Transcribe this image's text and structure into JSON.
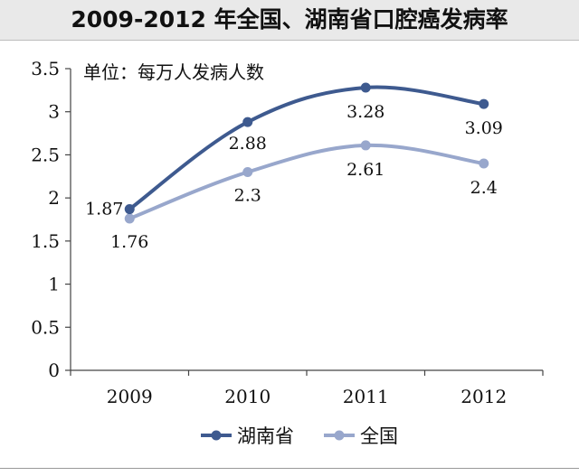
{
  "title": "2009-2012 年全国、湖南省口腔癌发病率",
  "unit_label": "单位：每万人发病人数",
  "chart_data": {
    "type": "line",
    "categories": [
      "2009",
      "2010",
      "2011",
      "2012"
    ],
    "y_ticks": [
      "0",
      "0.5",
      "1",
      "1.5",
      "2",
      "2.5",
      "3",
      "3.5"
    ],
    "ylim": [
      0,
      3.5
    ],
    "series": [
      {
        "name": "湖南省",
        "values": [
          1.87,
          2.88,
          3.28,
          3.09
        ],
        "labels": [
          "1.87",
          "2.88",
          "3.28",
          "3.09"
        ],
        "color": "#3e5a8f"
      },
      {
        "name": "全国",
        "values": [
          1.76,
          2.3,
          2.61,
          2.4
        ],
        "labels": [
          "1.76",
          "2.3",
          "2.61",
          "2.4"
        ],
        "color": "#98a7cc"
      }
    ],
    "legend_position": "bottom-center",
    "grid": false
  }
}
